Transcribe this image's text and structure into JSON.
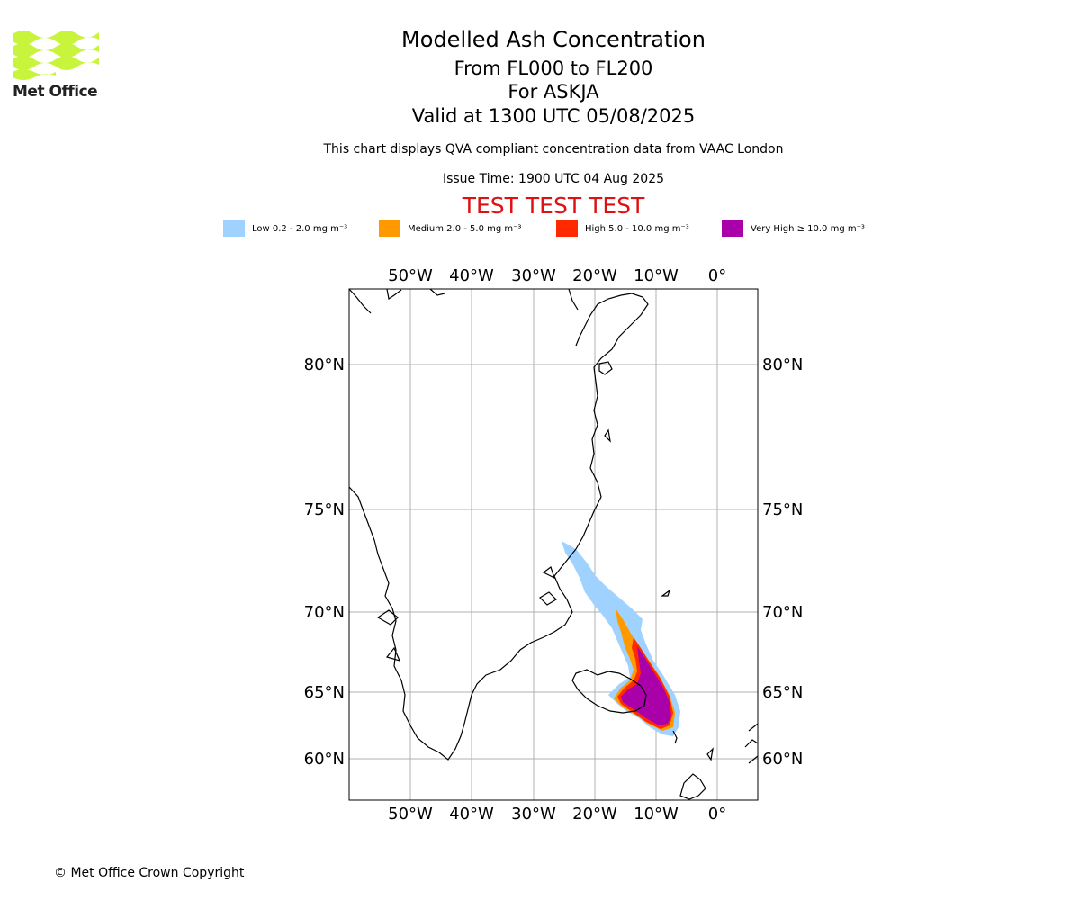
{
  "logo": {
    "text": "Met Office"
  },
  "header": {
    "title": "Modelled Ash Concentration",
    "levels": "From FL000 to FL200",
    "volcano": "For ASKJA",
    "valid": "Valid at 1300 UTC 05/08/2025",
    "subtitle": "This chart displays QVA compliant concentration data from VAAC London",
    "issue_time": "Issue Time: 1900 UTC 04 Aug 2025",
    "test_banner": "TEST TEST TEST"
  },
  "legend": [
    {
      "label": "Low 0.2 - 2.0 mg m⁻³",
      "color": "#a0d2ff"
    },
    {
      "label": "Medium 2.0 - 5.0 mg m⁻³",
      "color": "#ff9900"
    },
    {
      "label": "High 5.0 - 10.0 mg m⁻³",
      "color": "#ff2a00"
    },
    {
      "label": "Very High ≥ 10.0 mg m⁻³",
      "color": "#aa00aa"
    }
  ],
  "map": {
    "lon_labels": [
      "50°W",
      "40°W",
      "30°W",
      "20°W",
      "10°W",
      "0°"
    ],
    "lat_labels": [
      "80°N",
      "75°N",
      "70°N",
      "65°N",
      "60°N"
    ],
    "grid": true
  },
  "footer": {
    "copyright": "© Met Office Crown Copyright"
  }
}
